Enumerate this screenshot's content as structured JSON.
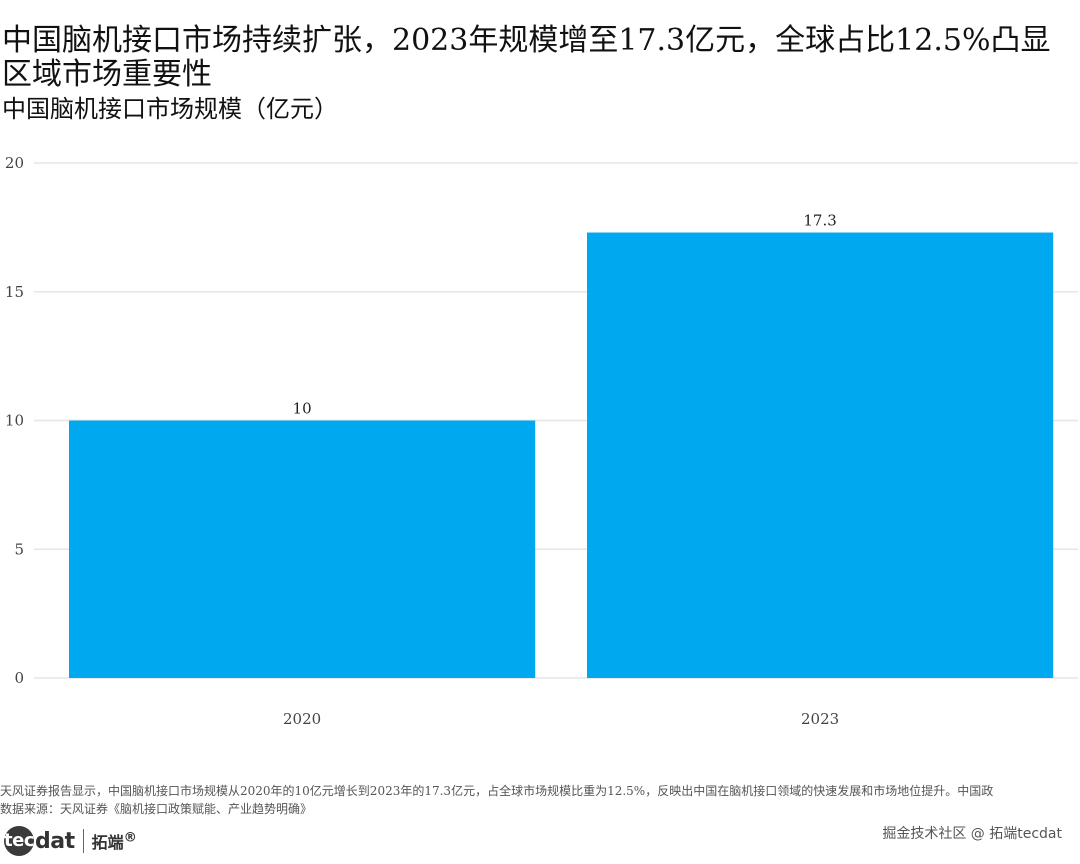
{
  "title": "中国脑机接口市场持续扩张，2023年规模增至17.3亿元，全球占比12.5%凸显区域市场重要性",
  "subtitle": "中国脑机接口市场规模（亿元）",
  "caption": "天风证券报告显示，中国脑机接口市场规模从2020年的10亿元增长到2023年的17.3亿元，占全球市场规模比重为12.5%，反映出中国在脑机接口领域的快速发展和市场地位提升。中国政",
  "source": "数据来源：天风证券《脑机接口政策赋能、产业趋势明确》",
  "logo": {
    "brand_circle": "tec",
    "brand_rest": "dat",
    "cn": "拓端",
    "mark": "®"
  },
  "watermark": "掘金技术社区 @ 拓端tecdat",
  "colors": {
    "bar": "#00A8F0",
    "grid": "#E6E6E6",
    "axis_text": "#444444"
  },
  "chart_data": {
    "type": "bar",
    "title": "中国脑机接口市场持续扩张，2023年规模增至17.3亿元，全球占比12.5%凸显区域市场重要性",
    "subtitle": "中国脑机接口市场规模（亿元）",
    "xlabel": "",
    "ylabel": "",
    "categories": [
      "2020",
      "2023"
    ],
    "values": [
      10,
      17.3
    ],
    "data_labels": [
      "10",
      "17.3"
    ],
    "ylim": [
      0,
      20
    ],
    "yticks": [
      0,
      5,
      10,
      15,
      20
    ],
    "grid": "horizontal",
    "legend": "none"
  }
}
